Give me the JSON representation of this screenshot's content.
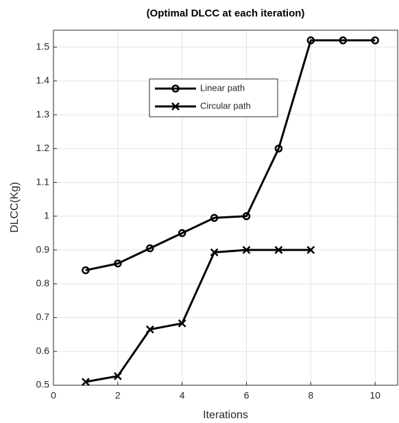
{
  "chart_data": {
    "type": "line",
    "title": "(Optimal DLCC  at each iteration)",
    "x_label": "Iterations",
    "y_label": "DLCC(Kg)",
    "x": [
      1,
      2,
      3,
      4,
      5,
      6,
      7,
      8,
      9,
      10
    ],
    "series": [
      {
        "name": "Linear path",
        "color": "#000000",
        "marker": "o",
        "values": [
          0.84,
          0.86,
          0.905,
          0.95,
          0.995,
          1.0,
          1.2,
          1.52,
          1.52,
          1.52
        ]
      },
      {
        "name": "Circular path",
        "color": "#000000",
        "marker": "x",
        "values": [
          0.51,
          0.527,
          0.665,
          0.683,
          0.893,
          0.9,
          0.9,
          0.9,
          null,
          null
        ]
      }
    ],
    "xlim": [
      0,
      10.7
    ],
    "ylim": [
      0.5,
      1.55
    ],
    "xticks": [
      0,
      2,
      4,
      6,
      8,
      10
    ],
    "yticks": [
      0.5,
      0.6,
      0.7,
      0.8,
      0.9,
      1,
      1.1,
      1.2,
      1.3,
      1.4,
      1.5
    ],
    "grid": true,
    "legend": "upper left"
  }
}
